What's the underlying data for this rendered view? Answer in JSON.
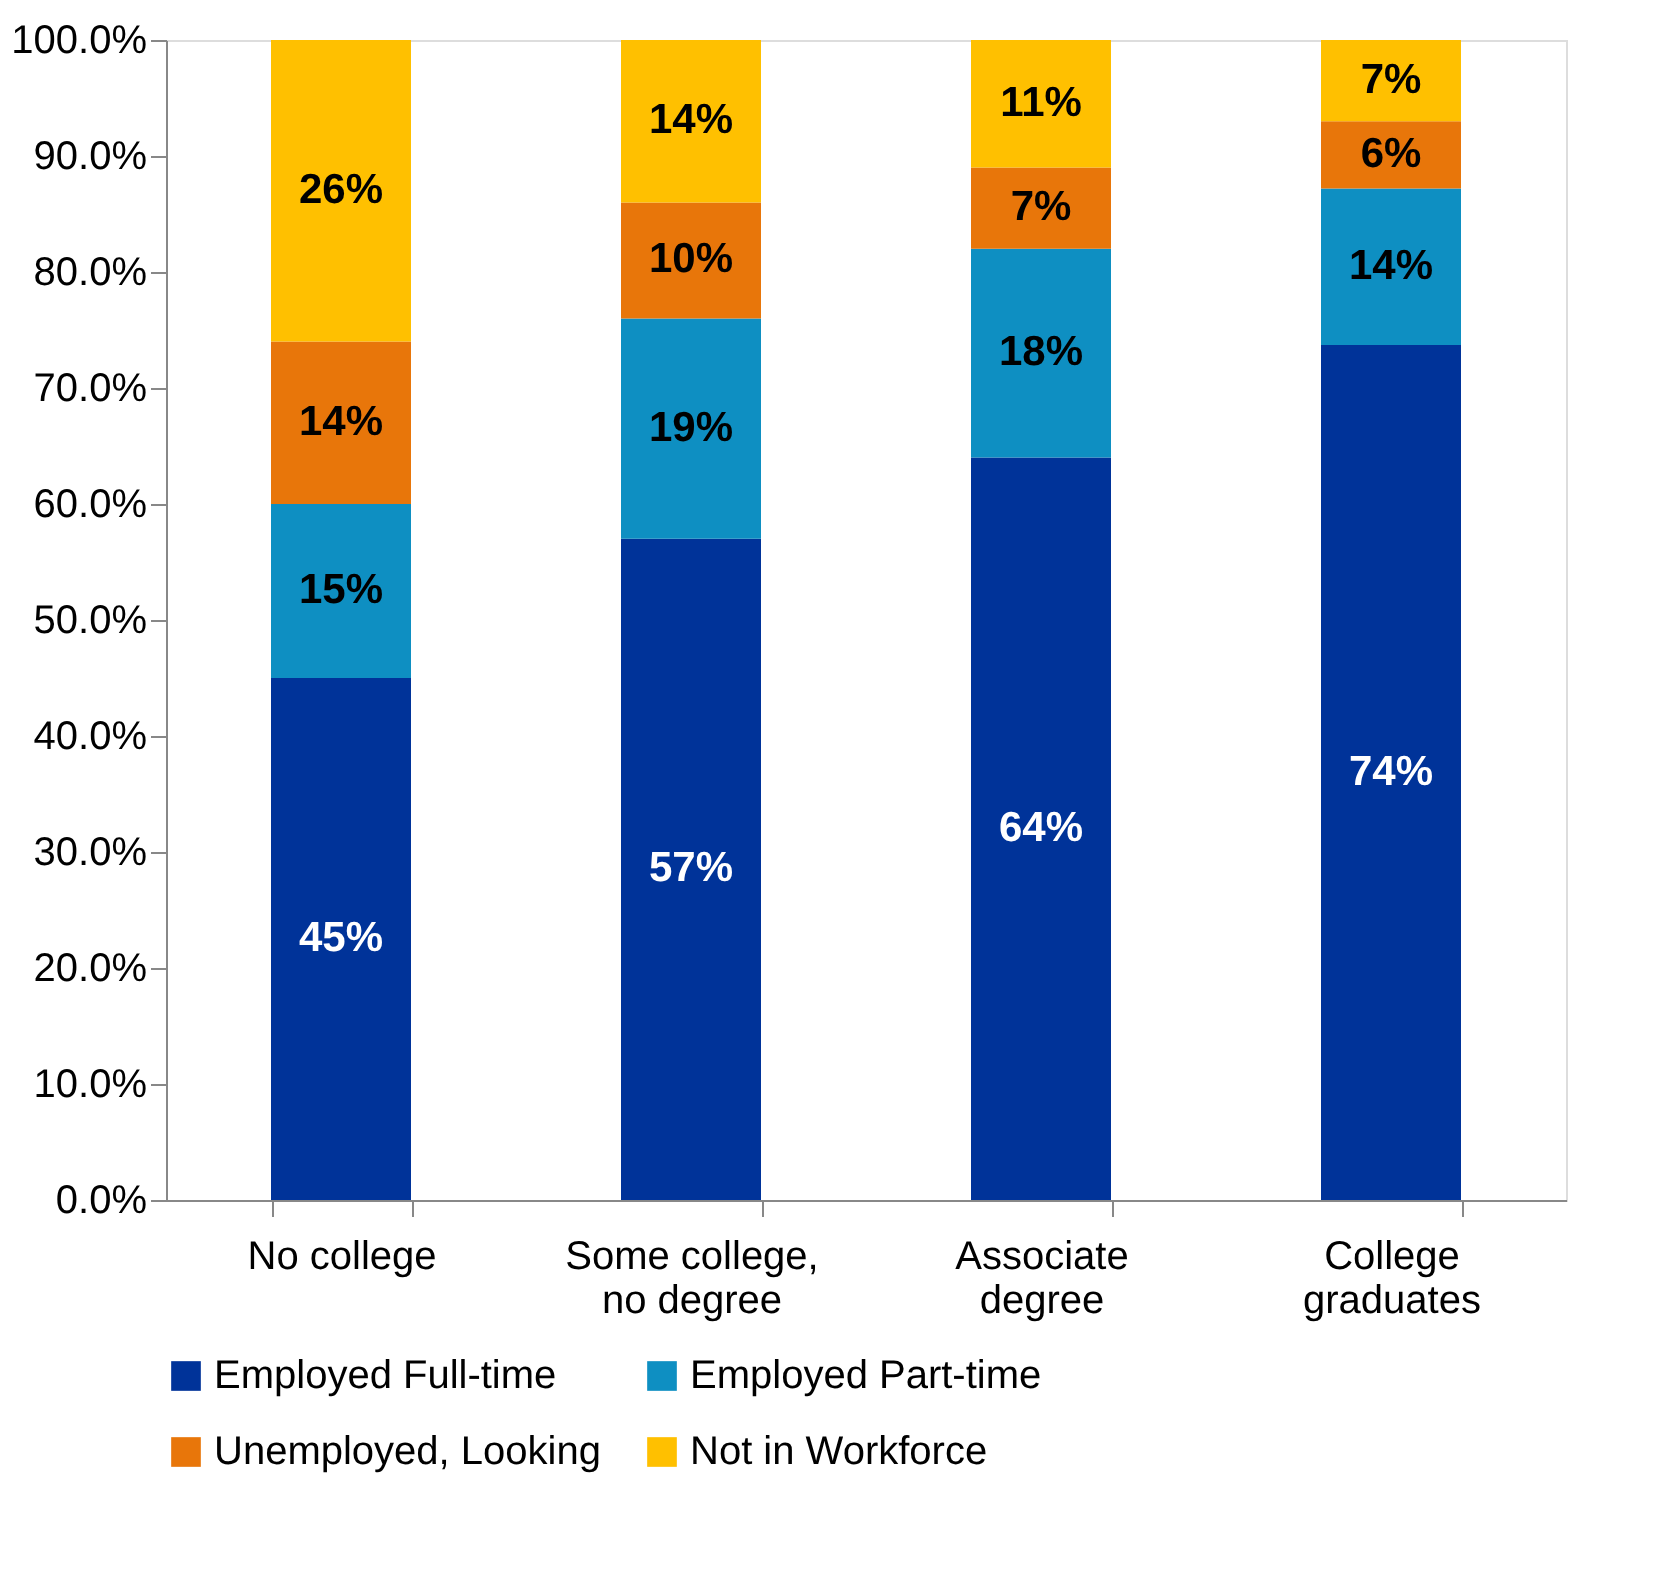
{
  "chart_data": {
    "type": "bar",
    "stacked": true,
    "categories": [
      "No college",
      "Some college,\nno degree",
      "Associate\ndegree",
      "College\ngraduates"
    ],
    "series": [
      {
        "name": "Employed Full-time",
        "color": "#003399",
        "values": [
          45,
          57,
          64,
          73.7
        ],
        "value_labels": [
          "45%",
          "57%",
          "64%",
          "74%"
        ]
      },
      {
        "name": "Employed Part-time",
        "color": "#0E8FC2",
        "values": [
          15,
          19,
          18,
          13.5
        ],
        "value_labels": [
          "15%",
          "19%",
          "18%",
          "14%"
        ]
      },
      {
        "name": "Unemployed, Looking",
        "color": "#E8760A",
        "values": [
          14,
          10,
          7,
          5.8
        ],
        "value_labels": [
          "14%",
          "10%",
          "7%",
          "6%"
        ]
      },
      {
        "name": "Not in Workforce",
        "color": "#FFC000",
        "values": [
          26,
          14,
          11,
          7
        ],
        "value_labels": [
          "26%",
          "14%",
          "11%",
          "7%"
        ]
      }
    ],
    "ylim": [
      0,
      100
    ],
    "yticks": [
      {
        "value": 0,
        "label": "0.0%"
      },
      {
        "value": 10,
        "label": "10.0%"
      },
      {
        "value": 20,
        "label": "20.0%"
      },
      {
        "value": 30,
        "label": "30.0%"
      },
      {
        "value": 40,
        "label": "40.0%"
      },
      {
        "value": 50,
        "label": "50.0%"
      },
      {
        "value": 60,
        "label": "60.0%"
      },
      {
        "value": 70,
        "label": "70.0%"
      },
      {
        "value": 80,
        "label": "80.0%"
      },
      {
        "value": 90,
        "label": "90.0%"
      },
      {
        "value": 100,
        "label": "100.0%"
      }
    ],
    "grid": false,
    "legend": "bottom"
  }
}
